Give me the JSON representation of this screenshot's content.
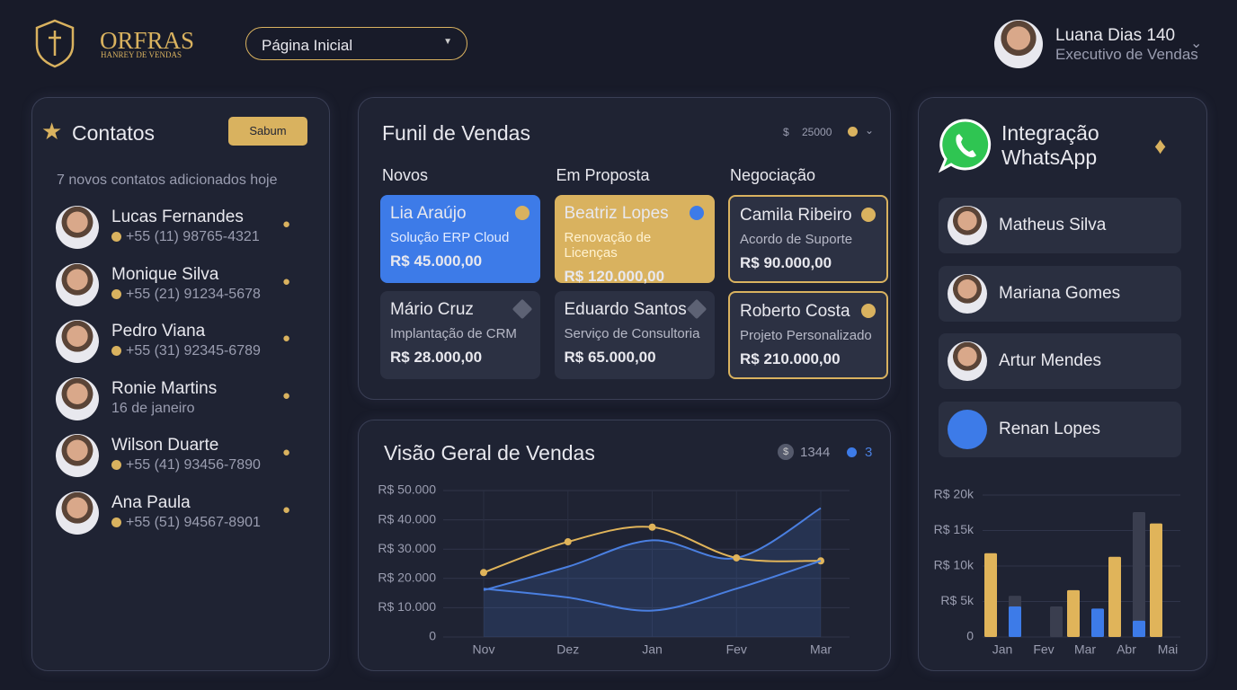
{
  "header": {
    "brand": "ORFRAS",
    "brand_subtitle": "HANREY DE VENDAS",
    "nav": "Página Inicial",
    "user": {
      "name": "Luana Dias 140",
      "role": "Executivo de Vendas"
    }
  },
  "contacts": {
    "title": "Contatos",
    "button": "Sabum",
    "subtitle": "7 novos contatos adicionados hoje",
    "items": [
      {
        "name": "Lucas Fernandes",
        "detail": "+55 (11) 98765-4321"
      },
      {
        "name": "Monique Silva",
        "detail": "+55 (21) 91234-5678"
      },
      {
        "name": "Pedro Viana",
        "detail": "+55 (31) 92345-6789"
      },
      {
        "name": "Ronie Martins",
        "detail": "16 de janeiro"
      },
      {
        "name": "Wilson Duarte",
        "detail": "+55 (41) 93456-7890"
      },
      {
        "name": "Ana Paula",
        "detail": "+55 (51) 94567-8901"
      }
    ]
  },
  "funnel": {
    "title": "Funil de Vendas",
    "total": 25000,
    "columns": [
      {
        "title": "Novos",
        "cards": [
          {
            "name": "Lia Araújo",
            "description": "Solução ERP Cloud",
            "value": "R$ 45.000,00"
          },
          {
            "name": "Mário Cruz",
            "description": "Implantação de CRM",
            "value": "R$ 28.000,00"
          }
        ]
      },
      {
        "title": "Em Proposta",
        "cards": [
          {
            "name": "Beatriz Lopes",
            "description": "Renovação de Licenças",
            "value": "R$ 120.000,00"
          },
          {
            "name": "Eduardo Santos",
            "description": "Serviço de Consultoria",
            "value": "R$ 65.000,00"
          }
        ]
      },
      {
        "title": "Negociação",
        "cards": [
          {
            "name": "Camila Ribeiro",
            "description": "Acordo de Suporte",
            "value": "R$ 90.000,00"
          },
          {
            "name": "Roberto Costa",
            "description": "Projeto Personalizado",
            "value": "R$ 210.000,00"
          }
        ]
      }
    ]
  },
  "sales_overview": {
    "title": "Visão Geral de Vendas",
    "stats": [
      1344,
      3
    ],
    "chart_data": {
      "type": "line",
      "categories": [
        "Nov",
        "Dez",
        "Jan",
        "Fev",
        "Mar"
      ],
      "series": [
        {
          "color": "#4a7fe0",
          "area": true,
          "values": [
            16000,
            24000,
            33000,
            27000,
            44000
          ]
        },
        {
          "color": "#e0b45a",
          "markers": true,
          "values": [
            22000,
            32500,
            37500,
            27000,
            26000
          ]
        },
        {
          "color": "#4a7fe0",
          "values": [
            16500,
            13500,
            9000,
            16500,
            26000
          ]
        }
      ],
      "ylim": [
        0,
        50000
      ],
      "yticks": [
        0,
        {
          "value": 10000,
          "label": "R$ 10.000"
        },
        {
          "value": 20000,
          "label": "R$ 20.000"
        },
        {
          "value": 30000,
          "label": "R$ 30.000"
        },
        {
          "value": 40000,
          "label": "R$ 40.000"
        },
        {
          "value": 50000,
          "label": "R$ 50.000"
        }
      ],
      "grid": true
    }
  },
  "whatsapp": {
    "title": "Integração WhatsApp",
    "contacts": [
      "Matheus Silva",
      "Mariana Gomes",
      "Artur Mendes",
      "Renan Lopes"
    ],
    "chart_data": {
      "type": "bar",
      "categories": [
        "Jan",
        "Fev",
        "Mar",
        "Abr",
        "Mai"
      ],
      "series": [
        {
          "color": "#e0b45a",
          "slot": "left",
          "values": [
            11800,
            null,
            6600,
            11300,
            16000
          ]
        },
        {
          "color": "#3a3e4f",
          "slot": "right",
          "values": [
            5800,
            4300,
            null,
            17600,
            null
          ]
        },
        {
          "color": "#3d7be8",
          "slot": "right",
          "values": [
            4300,
            null,
            4000,
            2300,
            null
          ]
        }
      ],
      "ylim": [
        0,
        20000
      ],
      "yticks": [
        0,
        {
          "value": 5000,
          "label": "R$ 5k"
        },
        {
          "value": 10000,
          "label": "R$ 10k"
        },
        {
          "value": 15000,
          "label": "R$ 15k"
        },
        {
          "value": 20000,
          "label": "R$ 20k"
        }
      ],
      "grid": true
    }
  }
}
